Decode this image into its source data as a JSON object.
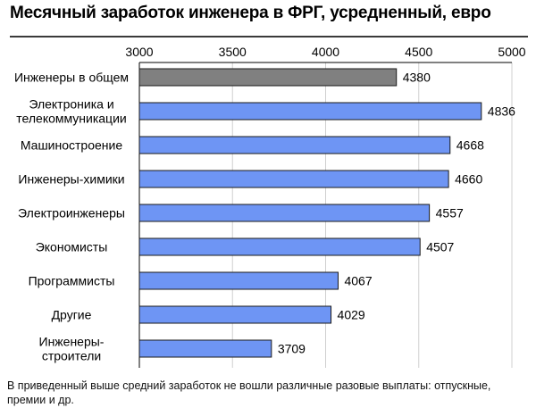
{
  "chart_data": {
    "type": "bar",
    "orientation": "horizontal",
    "title": "Месячный заработок инженера в ФРГ, усредненный, евро",
    "categories": [
      "Инженеры в общем",
      "Электроника и телекоммуникации",
      "Машиностроение",
      "Инженеры-химики",
      "Электроинженеры",
      "Экономисты",
      "Программисты",
      "Другие",
      "Инженеры-строители"
    ],
    "category_lines": [
      [
        "Инженеры в общем"
      ],
      [
        "Электроника и",
        "телекоммуникации"
      ],
      [
        "Машиностроение"
      ],
      [
        "Инженеры-химики"
      ],
      [
        "Электроинженеры"
      ],
      [
        "Экономисты"
      ],
      [
        "Программисты"
      ],
      [
        "Другие"
      ],
      [
        "Инженеры-",
        "строители"
      ]
    ],
    "values": [
      4380,
      4836,
      4668,
      4660,
      4557,
      4507,
      4067,
      4029,
      3709
    ],
    "bar_colors": [
      "#808080",
      "#6e95f4",
      "#6e95f4",
      "#6e95f4",
      "#6e95f4",
      "#6e95f4",
      "#6e95f4",
      "#6e95f4",
      "#6e95f4"
    ],
    "xlim": [
      3000,
      5000
    ],
    "xticks": [
      3000,
      3500,
      4000,
      4500,
      5000
    ],
    "xaxis_position": "top",
    "grid": true,
    "legend": "none",
    "footnote": "В приведенный выше средний заработок не вошли различные разовые выплаты: отпускные, премии и др."
  }
}
